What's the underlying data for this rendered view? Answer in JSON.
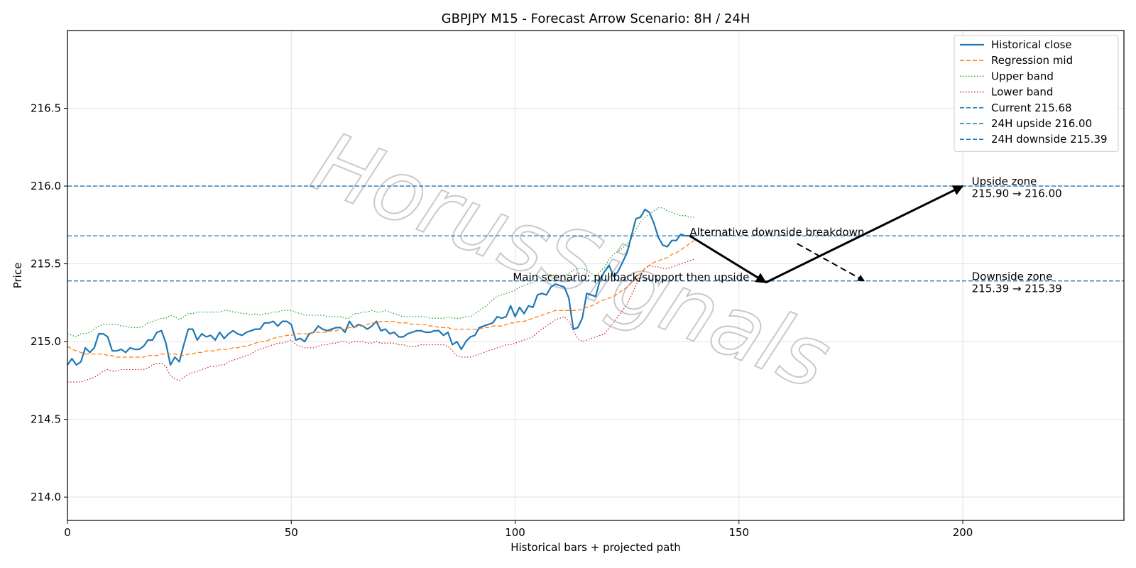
{
  "watermark": "HorusSignals",
  "chart_data": {
    "type": "line",
    "title": "GBPJPY M15 - Forecast Arrow Scenario: 8H / 24H",
    "xlabel": "Historical bars + projected path",
    "ylabel": "Price",
    "xlim": [
      0,
      236
    ],
    "ylim": [
      213.85,
      217.0
    ],
    "x_ticks": [
      0,
      50,
      100,
      150,
      200
    ],
    "y_ticks": [
      214.0,
      214.5,
      215.0,
      215.5,
      216.0,
      216.5
    ],
    "y_tick_labels": [
      "214.0",
      "214.5",
      "215.0",
      "215.5",
      "216.0",
      "216.5"
    ],
    "grid": true,
    "legend_position": "top-right",
    "series": [
      {
        "name": "Historical close",
        "style": "solid",
        "color": "#1f77b4",
        "x_start": 0,
        "values": [
          214.85,
          214.89,
          214.85,
          214.87,
          214.96,
          214.93,
          214.96,
          215.05,
          215.05,
          215.03,
          214.94,
          214.94,
          214.95,
          214.93,
          214.96,
          214.95,
          214.95,
          214.97,
          215.01,
          215.01,
          215.06,
          215.07,
          214.99,
          214.85,
          214.9,
          214.87,
          214.98,
          215.08,
          215.08,
          215.01,
          215.05,
          215.03,
          215.04,
          215.01,
          215.06,
          215.02,
          215.05,
          215.07,
          215.05,
          215.04,
          215.06,
          215.07,
          215.08,
          215.08,
          215.12,
          215.12,
          215.13,
          215.1,
          215.13,
          215.13,
          215.11,
          215.01,
          215.02,
          215.0,
          215.05,
          215.06,
          215.1,
          215.08,
          215.07,
          215.08,
          215.09,
          215.09,
          215.06,
          215.13,
          215.09,
          215.11,
          215.1,
          215.08,
          215.1,
          215.13,
          215.07,
          215.08,
          215.05,
          215.06,
          215.03,
          215.03,
          215.05,
          215.06,
          215.07,
          215.07,
          215.06,
          215.06,
          215.07,
          215.07,
          215.04,
          215.06,
          214.98,
          215.0,
          214.95,
          215.0,
          215.03,
          215.04,
          215.09,
          215.1,
          215.11,
          215.12,
          215.16,
          215.15,
          215.16,
          215.23,
          215.16,
          215.22,
          215.18,
          215.23,
          215.22,
          215.3,
          215.31,
          215.3,
          215.35,
          215.37,
          215.36,
          215.35,
          215.28,
          215.08,
          215.09,
          215.15,
          215.31,
          215.3,
          215.29,
          215.4,
          215.45,
          215.49,
          215.42,
          215.45,
          215.51,
          215.57,
          215.68,
          215.79,
          215.8,
          215.85,
          215.83,
          215.76,
          215.67,
          215.62,
          215.61,
          215.65,
          215.65,
          215.69,
          215.68,
          215.68,
          215.68
        ]
      },
      {
        "name": "Regression mid",
        "style": "dashed",
        "color": "#ff7f0e",
        "x_start": 0,
        "values": [
          214.97,
          214.95,
          214.94,
          214.93,
          214.92,
          214.92,
          214.92,
          214.92,
          214.92,
          214.91,
          214.91,
          214.9,
          214.9,
          214.9,
          214.9,
          214.9,
          214.9,
          214.9,
          214.91,
          214.91,
          214.91,
          214.92,
          214.92,
          214.92,
          214.92,
          214.91,
          214.91,
          214.92,
          214.92,
          214.93,
          214.93,
          214.94,
          214.94,
          214.94,
          214.95,
          214.95,
          214.95,
          214.96,
          214.96,
          214.97,
          214.97,
          214.98,
          214.99,
          215.0,
          215.0,
          215.01,
          215.02,
          215.03,
          215.03,
          215.04,
          215.04,
          215.05,
          215.05,
          215.05,
          215.05,
          215.06,
          215.06,
          215.06,
          215.06,
          215.07,
          215.07,
          215.08,
          215.08,
          215.09,
          215.09,
          215.1,
          215.1,
          215.11,
          215.12,
          215.12,
          215.13,
          215.13,
          215.13,
          215.13,
          215.12,
          215.12,
          215.12,
          215.11,
          215.11,
          215.11,
          215.11,
          215.1,
          215.1,
          215.09,
          215.09,
          215.09,
          215.08,
          215.08,
          215.08,
          215.08,
          215.08,
          215.08,
          215.08,
          215.09,
          215.09,
          215.1,
          215.1,
          215.1,
          215.11,
          215.12,
          215.12,
          215.13,
          215.13,
          215.14,
          215.15,
          215.16,
          215.17,
          215.18,
          215.19,
          215.2,
          215.2,
          215.2,
          215.2,
          215.2,
          215.2,
          215.21,
          215.22,
          215.23,
          215.24,
          215.26,
          215.27,
          215.28,
          215.29,
          215.31,
          215.33,
          215.35,
          215.38,
          215.41,
          215.44,
          215.47,
          215.49,
          215.51,
          215.52,
          215.53,
          215.54,
          215.56,
          215.57,
          215.59,
          215.61,
          215.63,
          215.65
        ]
      },
      {
        "name": "Upper band",
        "style": "dotted",
        "color": "#2ca02c",
        "x_start": 0,
        "values": [
          215.05,
          215.04,
          215.03,
          215.05,
          215.05,
          215.06,
          215.08,
          215.1,
          215.11,
          215.11,
          215.11,
          215.11,
          215.1,
          215.1,
          215.09,
          215.09,
          215.09,
          215.1,
          215.12,
          215.13,
          215.14,
          215.15,
          215.15,
          215.17,
          215.16,
          215.14,
          215.16,
          215.18,
          215.18,
          215.19,
          215.19,
          215.19,
          215.19,
          215.19,
          215.19,
          215.2,
          215.2,
          215.19,
          215.19,
          215.18,
          215.18,
          215.17,
          215.18,
          215.17,
          215.18,
          215.18,
          215.19,
          215.19,
          215.2,
          215.2,
          215.2,
          215.19,
          215.18,
          215.17,
          215.17,
          215.17,
          215.17,
          215.17,
          215.16,
          215.16,
          215.16,
          215.16,
          215.15,
          215.15,
          215.18,
          215.18,
          215.19,
          215.19,
          215.2,
          215.19,
          215.19,
          215.2,
          215.19,
          215.18,
          215.17,
          215.16,
          215.16,
          215.16,
          215.16,
          215.16,
          215.16,
          215.15,
          215.15,
          215.15,
          215.15,
          215.16,
          215.15,
          215.15,
          215.15,
          215.16,
          215.16,
          215.18,
          215.2,
          215.22,
          215.24,
          215.27,
          215.29,
          215.3,
          215.31,
          215.32,
          215.33,
          215.35,
          215.36,
          215.37,
          215.38,
          215.4,
          215.41,
          215.43,
          215.43,
          215.42,
          215.42,
          215.42,
          215.44,
          215.46,
          215.47,
          215.47,
          215.46,
          215.44,
          215.42,
          215.45,
          215.48,
          215.53,
          215.56,
          215.58,
          215.6,
          215.63,
          215.66,
          215.72,
          215.77,
          215.8,
          215.82,
          215.84,
          215.86,
          215.86,
          215.84,
          215.83,
          215.82,
          215.81,
          215.81,
          215.8,
          215.8
        ]
      },
      {
        "name": "Lower band",
        "style": "dotted",
        "color": "#d62728",
        "x_start": 0,
        "values": [
          214.74,
          214.74,
          214.74,
          214.74,
          214.75,
          214.76,
          214.77,
          214.79,
          214.81,
          214.82,
          214.81,
          214.81,
          214.82,
          214.82,
          214.82,
          214.82,
          214.82,
          214.82,
          214.83,
          214.85,
          214.86,
          214.86,
          214.84,
          214.78,
          214.76,
          214.75,
          214.77,
          214.79,
          214.8,
          214.81,
          214.82,
          214.83,
          214.84,
          214.84,
          214.85,
          214.85,
          214.87,
          214.88,
          214.89,
          214.9,
          214.91,
          214.92,
          214.94,
          214.95,
          214.96,
          214.97,
          214.98,
          214.99,
          214.99,
          215.0,
          215.01,
          214.98,
          214.97,
          214.96,
          214.96,
          214.96,
          214.97,
          214.98,
          214.98,
          214.99,
          214.99,
          215.0,
          215.0,
          214.99,
          215.0,
          215.0,
          215.0,
          214.99,
          214.99,
          215.0,
          214.99,
          214.99,
          214.99,
          214.99,
          214.98,
          214.98,
          214.97,
          214.97,
          214.97,
          214.98,
          214.98,
          214.98,
          214.98,
          214.98,
          214.98,
          214.97,
          214.94,
          214.91,
          214.9,
          214.9,
          214.9,
          214.91,
          214.92,
          214.93,
          214.94,
          214.95,
          214.96,
          214.97,
          214.98,
          214.98,
          214.99,
          215.0,
          215.01,
          215.02,
          215.03,
          215.06,
          215.08,
          215.1,
          215.12,
          215.14,
          215.15,
          215.16,
          215.13,
          215.07,
          215.02,
          215.0,
          215.01,
          215.02,
          215.03,
          215.04,
          215.05,
          215.09,
          215.12,
          215.16,
          215.2,
          215.24,
          215.3,
          215.36,
          215.42,
          215.47,
          215.49,
          215.48,
          215.48,
          215.47,
          215.47,
          215.48,
          215.49,
          215.5,
          215.51,
          215.52,
          215.53
        ]
      }
    ],
    "hlines": [
      {
        "name": "Current 215.68",
        "y": 215.68,
        "style": "dashed",
        "color": "#1f77b4"
      },
      {
        "name": "24H upside 216.00",
        "y": 216.0,
        "style": "dashed",
        "color": "#1f77b4"
      },
      {
        "name": "24H downside 215.39",
        "y": 215.39,
        "style": "dashed",
        "color": "#1f77b4"
      }
    ],
    "arrows": [
      {
        "from": [
          139,
          215.68
        ],
        "to": [
          156,
          215.38
        ],
        "style": "solid"
      },
      {
        "from": [
          156,
          215.38
        ],
        "to": [
          200,
          216.0
        ],
        "style": "solid"
      },
      {
        "from": [
          163,
          215.63
        ],
        "to": [
          178,
          215.39
        ],
        "style": "dashed"
      }
    ],
    "annotations": [
      {
        "text": "Main scenario: pullback/support then upside",
        "x": 99.5,
        "y": 215.39
      },
      {
        "text": "Alternative downside breakdown",
        "x": 139,
        "y": 215.68
      },
      {
        "lines": [
          "Upside zone",
          "215.90 → 216.00"
        ],
        "x": 202,
        "y": 216.02
      },
      {
        "lines": [
          "Downside zone",
          "215.39 → 215.39"
        ],
        "x": 202,
        "y": 215.41
      }
    ]
  }
}
